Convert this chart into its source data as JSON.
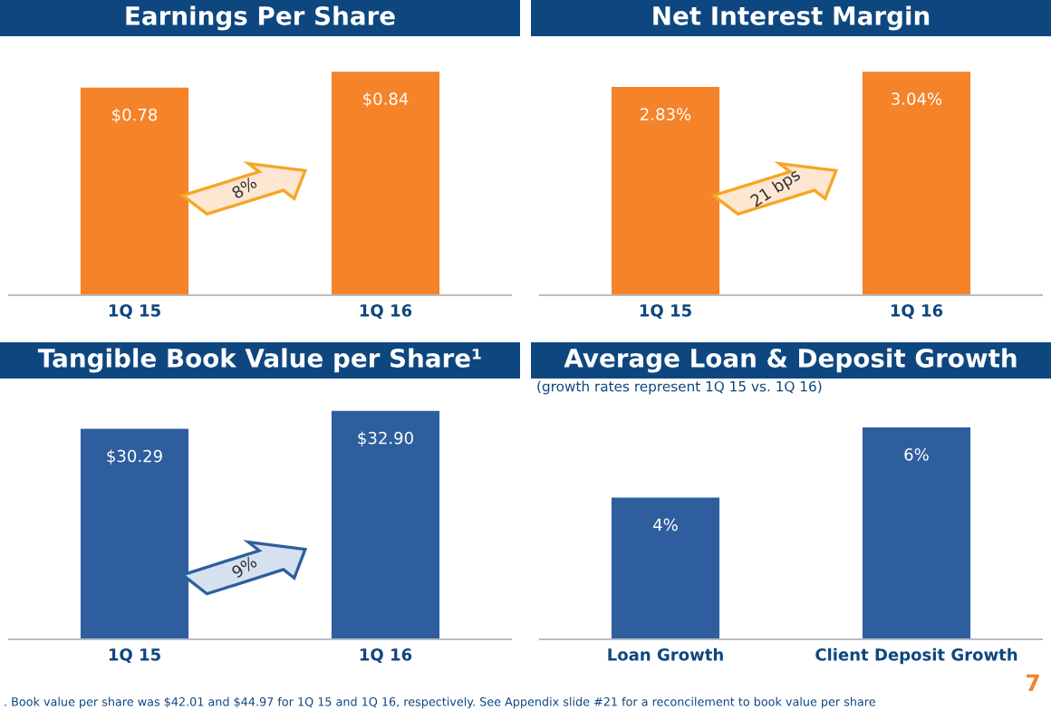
{
  "chart_data": [
    {
      "type": "bar",
      "title": "Earnings Per Share",
      "categories": [
        "1Q 15",
        "1Q 16"
      ],
      "values": [
        0.78,
        0.84
      ],
      "value_labels": [
        "$0.78",
        "$0.84"
      ],
      "color": "#f5832a",
      "tick_labels": "x",
      "grid": false,
      "legend": false,
      "annotations": [
        "8%"
      ]
    },
    {
      "type": "bar",
      "title": "Net Interest Margin",
      "categories": [
        "1Q 15",
        "1Q 16"
      ],
      "values": [
        2.83,
        3.04
      ],
      "value_labels": [
        "2.83%",
        "3.04%"
      ],
      "color": "#f5832a",
      "tick_labels": "x",
      "grid": false,
      "legend": false,
      "annotations": [
        "21 bps"
      ]
    },
    {
      "type": "bar",
      "title": "Tangible Book Value per Share¹",
      "categories": [
        "1Q 15",
        "1Q 16"
      ],
      "values": [
        30.29,
        32.9
      ],
      "value_labels": [
        "$30.29",
        "$32.90"
      ],
      "color": "#2e5e9e",
      "tick_labels": "x",
      "grid": false,
      "legend": false,
      "annotations": [
        "9%",
        ". Book value per share was $42.01 and $44.97 for 1Q 15 and 1Q 16, respectively. See Appendix slide #21 for a reconcilement to book value per share"
      ]
    },
    {
      "type": "bar",
      "title": "Average Loan & Deposit Growth",
      "subtitle": "(growth rates represent 1Q 15 vs. 1Q 16)",
      "categories": [
        "Loan Growth",
        "Client Deposit Growth"
      ],
      "values": [
        4,
        6
      ],
      "value_labels": [
        "4%",
        "6%"
      ],
      "color": "#2e5e9e",
      "tick_labels": "x",
      "grid": false,
      "legend": false,
      "annotations": [
        "7"
      ]
    }
  ]
}
